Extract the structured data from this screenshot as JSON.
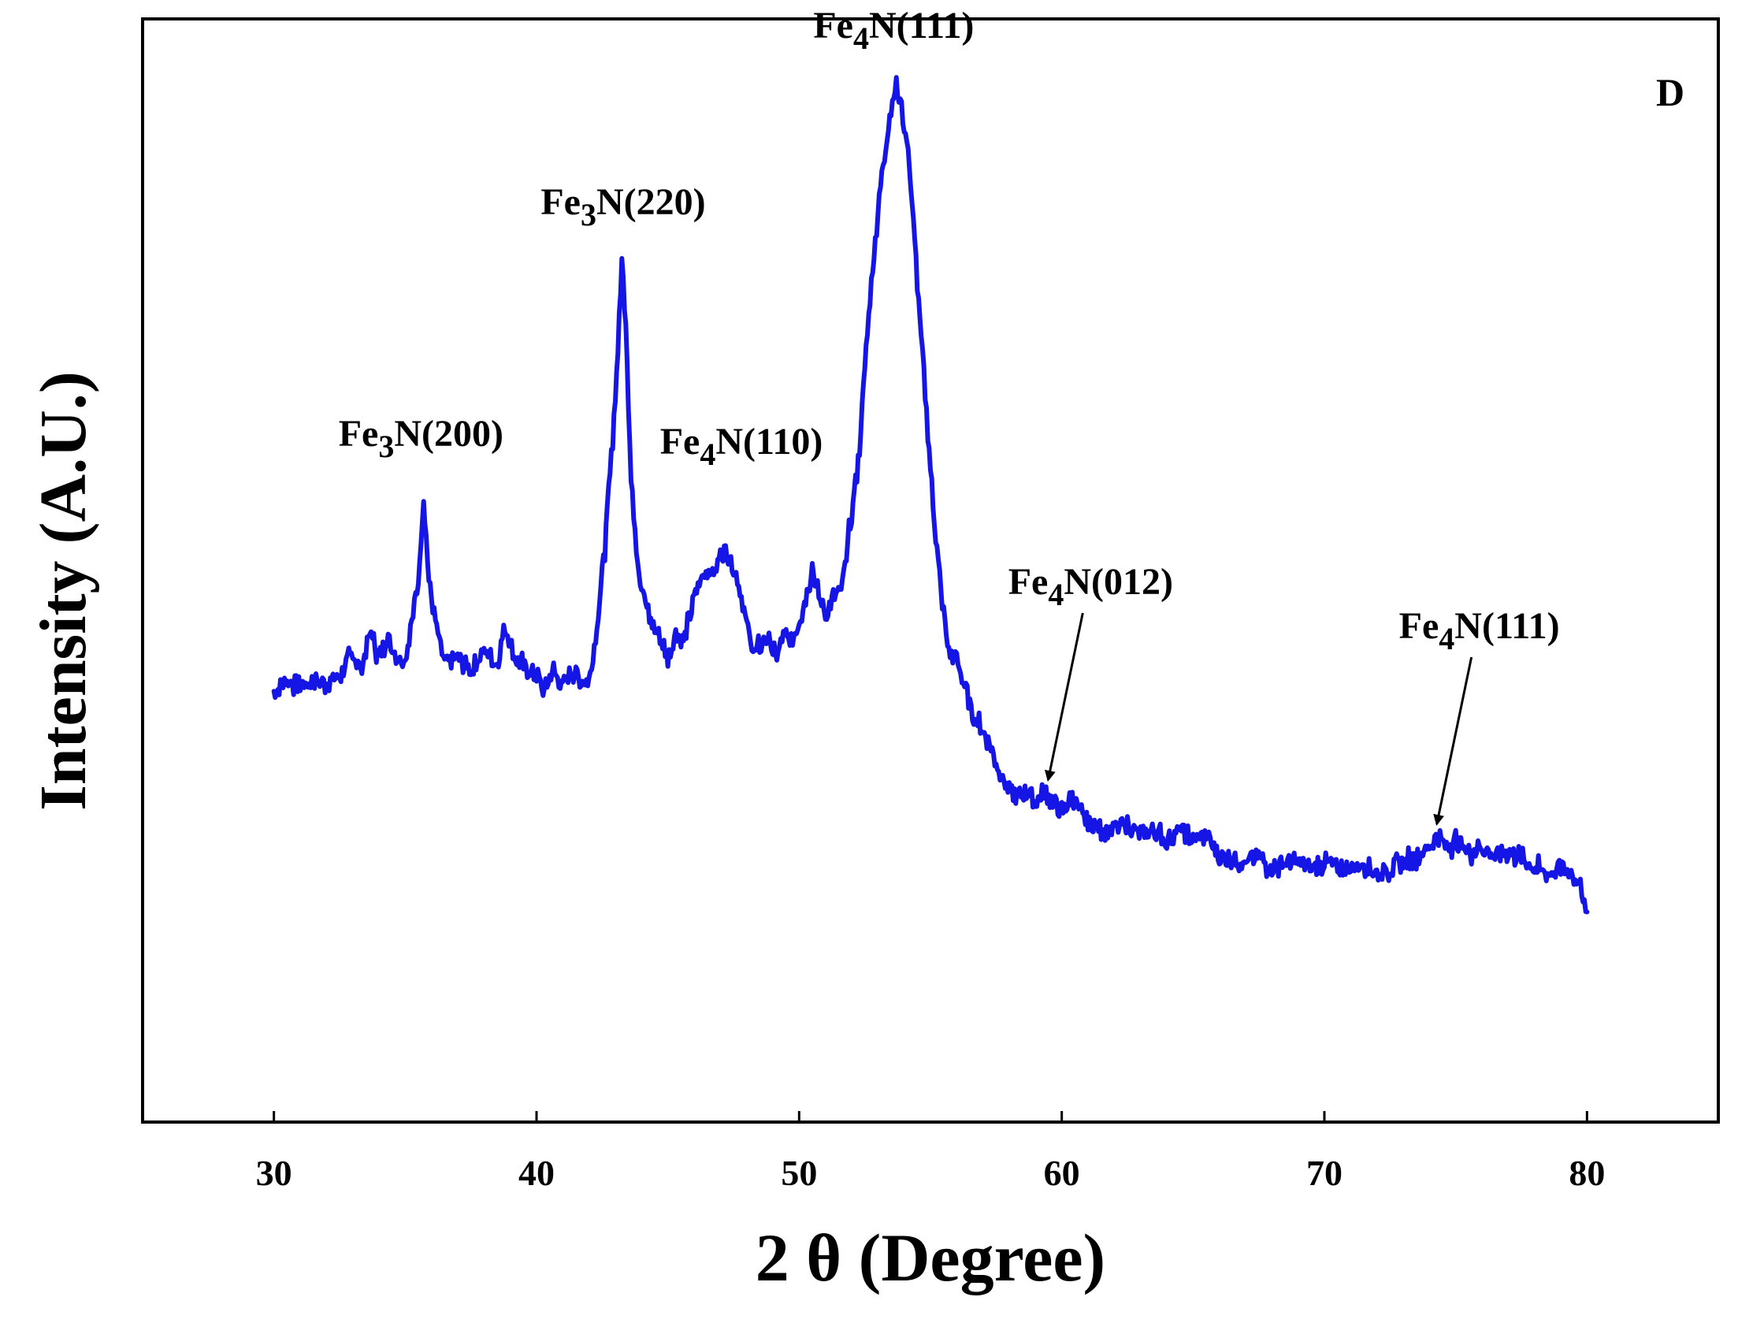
{
  "chart_data": {
    "type": "line",
    "panel_label": "D",
    "xlabel": "2 θ (Degree)",
    "ylabel": "Intensity (A.U.)",
    "xlim": [
      25,
      85
    ],
    "ylim": [
      0,
      100
    ],
    "x_ticks": [
      30,
      40,
      50,
      60,
      70,
      80
    ],
    "grid": false,
    "legend": "none",
    "line_color": "#1515e6",
    "series": [
      {
        "x": [
          30.0,
          30.5,
          31.0,
          31.5,
          32.0,
          32.5,
          33.0,
          33.3,
          33.7,
          34.0,
          34.3,
          34.7,
          35.0,
          35.3,
          35.5,
          35.7,
          35.9,
          36.2,
          36.5,
          37.0,
          37.5,
          38.0,
          38.5,
          38.8,
          39.2,
          39.6,
          40.0,
          40.3,
          40.6,
          41.0,
          41.3,
          41.7,
          42.0,
          42.3,
          42.6,
          42.9,
          43.1,
          43.25,
          43.4,
          43.6,
          43.9,
          44.3,
          44.7,
          45.0,
          45.3,
          45.6,
          46.0,
          46.4,
          46.8,
          47.1,
          47.4,
          47.7,
          48.0,
          48.3,
          48.5,
          48.8,
          49.1,
          49.4,
          49.7,
          50.0,
          50.3,
          50.5,
          50.7,
          51.0,
          51.3,
          51.6,
          52.0,
          52.3,
          52.6,
          52.9,
          53.2,
          53.5,
          53.7,
          53.9,
          54.2,
          54.5,
          54.8,
          55.1,
          55.4,
          55.7,
          56.0,
          56.3,
          56.6,
          57.0,
          57.3,
          57.6,
          58.0,
          58.3,
          58.7,
          59.0,
          59.3,
          59.7,
          60.0,
          60.4,
          60.8,
          61.2,
          61.6,
          62.0,
          62.5,
          63.0,
          63.5,
          64.0,
          64.5,
          65.0,
          65.5,
          66.0,
          66.5,
          67.0,
          67.5,
          68.0,
          68.5,
          69.0,
          69.5,
          70.0,
          70.5,
          71.0,
          71.5,
          72.0,
          72.5,
          73.0,
          73.5,
          74.0,
          74.3,
          74.6,
          75.0,
          75.5,
          76.0,
          76.5,
          77.0,
          77.5,
          78.0,
          78.5,
          79.0,
          79.5,
          79.8,
          80.0
        ],
        "y": [
          39.0,
          40.0,
          39.6,
          40.0,
          39.8,
          40.4,
          42.5,
          41.0,
          44.5,
          42.0,
          44.0,
          42.2,
          42.0,
          46.0,
          49.0,
          57.0,
          49.0,
          44.5,
          41.5,
          42.0,
          41.0,
          42.8,
          41.5,
          45.0,
          42.0,
          41.0,
          40.5,
          39.0,
          41.0,
          39.5,
          41.0,
          40.0,
          40.0,
          45.0,
          52.0,
          62.0,
          70.0,
          78.0,
          73.0,
          58.0,
          50.0,
          45.5,
          44.0,
          42.0,
          44.5,
          43.5,
          47.5,
          50.0,
          50.0,
          52.0,
          51.0,
          49.0,
          45.0,
          42.5,
          43.0,
          44.0,
          42.0,
          44.0,
          43.5,
          45.5,
          48.0,
          50.5,
          48.0,
          46.0,
          47.5,
          48.0,
          55.0,
          61.0,
          72.0,
          80.0,
          87.0,
          92.0,
          94.0,
          92.0,
          87.0,
          76.0,
          66.0,
          56.0,
          48.0,
          42.5,
          42.0,
          39.5,
          37.0,
          35.5,
          34.0,
          32.0,
          30.0,
          29.5,
          30.0,
          29.0,
          30.0,
          29.0,
          28.0,
          29.5,
          27.5,
          27.0,
          26.5,
          26.5,
          27.0,
          26.0,
          26.5,
          25.5,
          26.5,
          25.5,
          26.0,
          24.0,
          24.0,
          23.5,
          24.0,
          23.0,
          23.5,
          23.5,
          23.0,
          23.5,
          23.0,
          23.0,
          23.5,
          22.5,
          23.0,
          23.5,
          24.0,
          25.0,
          26.0,
          25.0,
          25.5,
          24.5,
          25.0,
          24.0,
          24.5,
          24.0,
          23.0,
          22.5,
          23.0,
          22.5,
          21.0,
          19.0
        ]
      }
    ],
    "annotations": [
      {
        "base": "Fe",
        "sub": "3",
        "rest": "N(200)",
        "x": 35.6,
        "y": 57.0,
        "arrow": false
      },
      {
        "base": "Fe",
        "sub": "3",
        "rest": "N(220)",
        "x": 43.3,
        "y": 78.0,
        "arrow": false
      },
      {
        "base": "Fe",
        "sub": "4",
        "rest": "N(110)",
        "x": 47.2,
        "y": 52.0,
        "arrow": false
      },
      {
        "base": "Fe",
        "sub": "4",
        "rest": "N(111)",
        "x": 53.6,
        "y": 94.0,
        "arrow": false
      },
      {
        "base": "Fe",
        "sub": "4",
        "rest": "N(012)",
        "x": 59.3,
        "y": 30.0,
        "arrow": true
      },
      {
        "base": "Fe",
        "sub": "4",
        "rest": "N(111)",
        "x": 74.1,
        "y": 26.0,
        "arrow": true
      }
    ]
  }
}
